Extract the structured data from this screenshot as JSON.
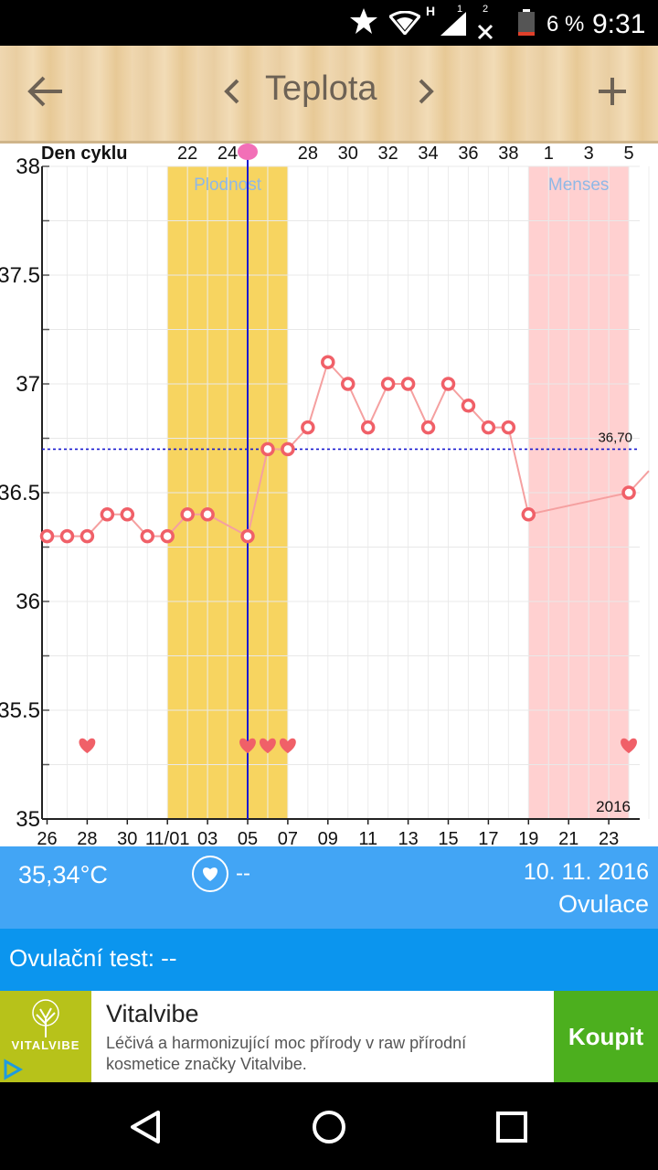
{
  "status_bar": {
    "battery_text": "6 %",
    "time": "9:31",
    "network_type": "H",
    "sim_label": "1",
    "sim2_label": "2",
    "icons": [
      "star-icon",
      "wifi-icon",
      "signal-icon",
      "no-signal-icon",
      "battery-icon"
    ]
  },
  "toolbar": {
    "title": "Teplota",
    "icons": [
      "back-arrow-icon",
      "chevron-left-icon",
      "chevron-right-icon",
      "plus-icon"
    ]
  },
  "chart_data": {
    "type": "line",
    "title": "",
    "top_axis_label": "Den cyklu",
    "top_ticks": [
      "22",
      "24",
      "",
      "28",
      "30",
      "32",
      "34",
      "36",
      "38",
      "1",
      "3",
      "5"
    ],
    "x_tick_labels": [
      "26",
      "28",
      "30",
      "11/01",
      "03",
      "05",
      "07",
      "09",
      "11",
      "13",
      "15",
      "17",
      "19",
      "21",
      "23"
    ],
    "year_label": "2016",
    "y_ticks": [
      "38",
      "37.5",
      "37",
      "36.5",
      "36",
      "35.5",
      "35"
    ],
    "ylim": [
      35,
      38
    ],
    "grid": true,
    "x_dates": [
      "10-26",
      "10-27",
      "10-28",
      "10-29",
      "10-30",
      "10-31",
      "11-01",
      "11-02",
      "11-03",
      "11-04",
      "11-05",
      "11-06",
      "11-07",
      "11-08",
      "11-09",
      "11-10",
      "11-11",
      "11-12",
      "11-13",
      "11-14",
      "11-15",
      "11-16",
      "11-17",
      "11-18",
      "11-19",
      "11-20",
      "11-21",
      "11-22",
      "11-23",
      "11-24",
      "11-25"
    ],
    "series": [
      {
        "values": [
          36.3,
          36.3,
          36.3,
          36.4,
          36.4,
          36.3,
          36.3,
          36.4,
          36.4,
          null,
          36.3,
          36.7,
          36.7,
          36.8,
          37.1,
          37.0,
          36.8,
          37.0,
          37.0,
          36.8,
          37.0,
          36.9,
          36.8,
          36.8,
          36.4,
          null,
          null,
          null,
          null,
          36.5,
          36.6
        ]
      }
    ],
    "reference_line": {
      "value": 36.7,
      "label": "36,70",
      "color": "#1a1ad0"
    },
    "bands": [
      {
        "label": "Plodnost",
        "from": "11-01",
        "to": "11-07",
        "color": "#f7d460"
      },
      {
        "label": "Menses",
        "from": "11-19",
        "to": "11-24",
        "color": "#ffd0d0"
      }
    ],
    "ovulation_marker": {
      "date": "11-05",
      "color": "#1a1ad0",
      "icon": "pink-dot-icon"
    },
    "heart_days": [
      "10-28",
      "11-05",
      "11-06",
      "11-07",
      "11-24"
    ],
    "heart_level": 35.34,
    "colors": {
      "line": "#f5a0a0",
      "marker": "#f06068",
      "heart": "#f06068"
    }
  },
  "info": {
    "temperature": "35,34°C",
    "sex_value": "--",
    "date": "10. 11. 2016",
    "phase": "Ovulace",
    "heart_icon": "heart-circle-icon"
  },
  "ovulation_test": {
    "label": "Ovulační test: --"
  },
  "ad": {
    "title": "Vitalvibe",
    "description": "Léčivá a harmonizující moc přírody v raw přírodní kosmetice značky Vitalvibe.",
    "button": "Koupit",
    "logo_text": "VITALVIBE",
    "colors": {
      "logo_bg": "#b7c21a",
      "button_bg": "#4caf1e"
    }
  },
  "nav_bar": {
    "icons": [
      "back-triangle-icon",
      "home-circle-icon",
      "recents-square-icon"
    ]
  },
  "colors": {
    "info_bg": "#42a5f5",
    "ovtest_bg": "#0b95ee"
  }
}
